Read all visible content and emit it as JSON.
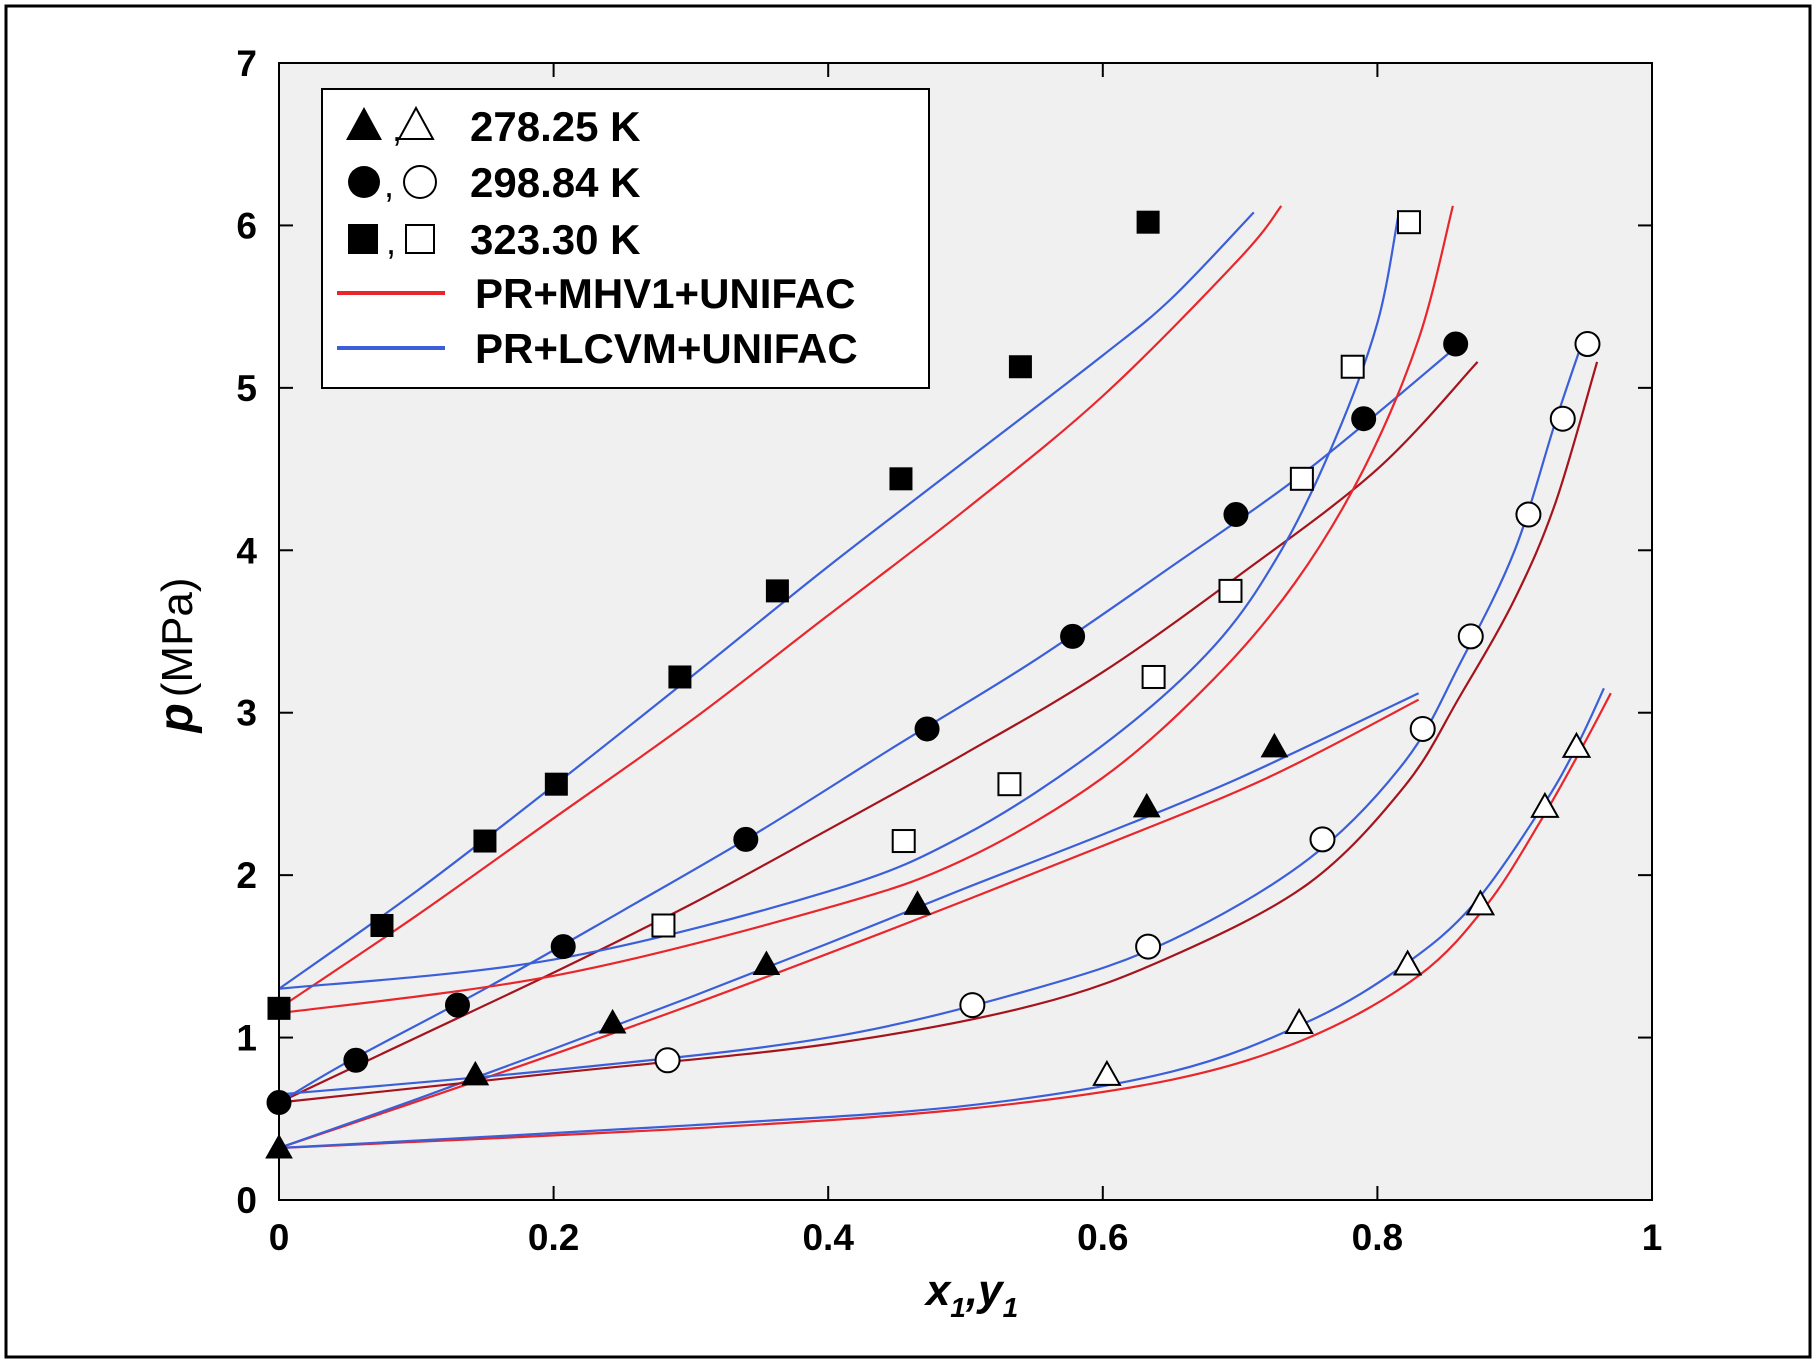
{
  "chart_data": {
    "type": "scatter",
    "xlabel": {
      "main": "x",
      "sub1": "1",
      "sep": ",",
      "main2": "y",
      "sub2": "1"
    },
    "ylabel": {
      "italic": "p",
      "unit": "(MPa)"
    },
    "xlim": [
      0,
      1
    ],
    "ylim": [
      0,
      7
    ],
    "x_ticks": [
      "0",
      "0.2",
      "0.4",
      "0.6",
      "0.8",
      "1"
    ],
    "y_ticks": [
      "0",
      "1",
      "2",
      "3",
      "4",
      "5",
      "6",
      "7"
    ],
    "grid": false,
    "legend_position": "top-left",
    "legend": [
      {
        "label": "278.25 K",
        "symbol": "triangle"
      },
      {
        "label": "298.84 K",
        "symbol": "circle"
      },
      {
        "label": "323.30 K",
        "symbol": "square"
      },
      {
        "label": "PR+MHV1+UNIFAC",
        "line_color": "#e8262b"
      },
      {
        "label": "PR+LCVM+UNIFAC",
        "line_color": "#3a5fd9"
      }
    ],
    "legend_separator": ",",
    "colors": {
      "mhv1": "#e8262b",
      "mhv1_dark": "#a5141c",
      "lcvm": "#3a5fd9",
      "plot_bg": "#f0f0f0"
    },
    "experimental": [
      {
        "temperature": "278.25 K",
        "symbol": "triangle",
        "liquid": [
          [
            0,
            0.32
          ],
          [
            0.143,
            0.77
          ],
          [
            0.243,
            1.09
          ],
          [
            0.355,
            1.45
          ],
          [
            0.465,
            1.82
          ],
          [
            0.632,
            2.42
          ],
          [
            0.725,
            2.79
          ]
        ],
        "vapor": [
          [
            0.603,
            0.77
          ],
          [
            0.743,
            1.09
          ],
          [
            0.822,
            1.45
          ],
          [
            0.875,
            1.82
          ],
          [
            0.922,
            2.42
          ],
          [
            0.945,
            2.79
          ]
        ]
      },
      {
        "temperature": "298.84 K",
        "symbol": "circle",
        "liquid": [
          [
            0,
            0.6
          ],
          [
            0.056,
            0.86
          ],
          [
            0.13,
            1.2
          ],
          [
            0.207,
            1.56
          ],
          [
            0.34,
            2.22
          ],
          [
            0.472,
            2.9
          ],
          [
            0.578,
            3.47
          ],
          [
            0.697,
            4.22
          ],
          [
            0.79,
            4.81
          ],
          [
            0.857,
            5.27
          ]
        ],
        "vapor": [
          [
            0.283,
            0.86
          ],
          [
            0.505,
            1.2
          ],
          [
            0.633,
            1.56
          ],
          [
            0.76,
            2.22
          ],
          [
            0.833,
            2.9
          ],
          [
            0.868,
            3.47
          ],
          [
            0.91,
            4.22
          ],
          [
            0.935,
            4.81
          ],
          [
            0.953,
            5.27
          ]
        ]
      },
      {
        "temperature": "323.30 K",
        "symbol": "square",
        "liquid": [
          [
            0,
            1.18
          ],
          [
            0.075,
            1.69
          ],
          [
            0.15,
            2.21
          ],
          [
            0.202,
            2.56
          ],
          [
            0.292,
            3.22
          ],
          [
            0.363,
            3.75
          ],
          [
            0.453,
            4.44
          ],
          [
            0.54,
            5.13
          ],
          [
            0.633,
            6.02
          ]
        ],
        "vapor": [
          [
            0.28,
            1.69
          ],
          [
            0.455,
            2.21
          ],
          [
            0.532,
            2.56
          ],
          [
            0.637,
            3.22
          ],
          [
            0.693,
            3.75
          ],
          [
            0.745,
            4.44
          ],
          [
            0.782,
            5.13
          ],
          [
            0.823,
            6.02
          ]
        ]
      }
    ],
    "model_curves": [
      {
        "model": "PR+MHV1+UNIFAC",
        "temperature": "278.25 K",
        "phase": "bubble",
        "color": "#e8262b",
        "points": [
          [
            0,
            0.32
          ],
          [
            0.15,
            0.75
          ],
          [
            0.3,
            1.2
          ],
          [
            0.45,
            1.68
          ],
          [
            0.6,
            2.18
          ],
          [
            0.72,
            2.6
          ],
          [
            0.83,
            3.08
          ]
        ]
      },
      {
        "model": "PR+LCVM+UNIFAC",
        "temperature": "278.25 K",
        "phase": "bubble",
        "color": "#3a5fd9",
        "points": [
          [
            0,
            0.32
          ],
          [
            0.1,
            0.62
          ],
          [
            0.2,
            0.93
          ],
          [
            0.3,
            1.25
          ],
          [
            0.4,
            1.58
          ],
          [
            0.5,
            1.92
          ],
          [
            0.6,
            2.25
          ],
          [
            0.7,
            2.6
          ],
          [
            0.83,
            3.12
          ]
        ]
      },
      {
        "model": "PR+MHV1+UNIFAC",
        "temperature": "278.25 K",
        "phase": "dew",
        "color": "#e8262b",
        "points": [
          [
            0,
            0.32
          ],
          [
            0.3,
            0.44
          ],
          [
            0.5,
            0.56
          ],
          [
            0.65,
            0.74
          ],
          [
            0.75,
            1.0
          ],
          [
            0.83,
            1.38
          ],
          [
            0.88,
            1.82
          ],
          [
            0.92,
            2.35
          ],
          [
            0.95,
            2.8
          ],
          [
            0.97,
            3.12
          ]
        ]
      },
      {
        "model": "PR+LCVM+UNIFAC",
        "temperature": "278.25 K",
        "phase": "dew",
        "color": "#3a5fd9",
        "points": [
          [
            0,
            0.32
          ],
          [
            0.3,
            0.46
          ],
          [
            0.5,
            0.58
          ],
          [
            0.65,
            0.79
          ],
          [
            0.75,
            1.1
          ],
          [
            0.82,
            1.45
          ],
          [
            0.87,
            1.82
          ],
          [
            0.92,
            2.42
          ],
          [
            0.945,
            2.79
          ],
          [
            0.965,
            3.15
          ]
        ]
      },
      {
        "model": "PR+MHV1+UNIFAC",
        "temperature": "298.84 K",
        "phase": "bubble",
        "color": "#a5141c",
        "points": [
          [
            0,
            0.6
          ],
          [
            0.1,
            1.0
          ],
          [
            0.2,
            1.4
          ],
          [
            0.3,
            1.82
          ],
          [
            0.4,
            2.28
          ],
          [
            0.5,
            2.75
          ],
          [
            0.6,
            3.25
          ],
          [
            0.7,
            3.85
          ],
          [
            0.8,
            4.5
          ],
          [
            0.873,
            5.16
          ]
        ]
      },
      {
        "model": "PR+LCVM+UNIFAC",
        "temperature": "298.84 K",
        "phase": "bubble",
        "color": "#3a5fd9",
        "points": [
          [
            0,
            0.6
          ],
          [
            0.05,
            0.85
          ],
          [
            0.15,
            1.3
          ],
          [
            0.25,
            1.78
          ],
          [
            0.35,
            2.27
          ],
          [
            0.45,
            2.8
          ],
          [
            0.55,
            3.32
          ],
          [
            0.65,
            3.9
          ],
          [
            0.75,
            4.5
          ],
          [
            0.86,
            5.27
          ]
        ]
      },
      {
        "model": "PR+MHV1+UNIFAC",
        "temperature": "298.84 K",
        "phase": "dew",
        "color": "#a5141c",
        "points": [
          [
            0,
            0.6
          ],
          [
            0.2,
            0.78
          ],
          [
            0.4,
            0.96
          ],
          [
            0.55,
            1.2
          ],
          [
            0.65,
            1.5
          ],
          [
            0.75,
            1.95
          ],
          [
            0.82,
            2.55
          ],
          [
            0.86,
            3.1
          ],
          [
            0.9,
            3.7
          ],
          [
            0.93,
            4.3
          ],
          [
            0.96,
            5.16
          ]
        ]
      },
      {
        "model": "PR+LCVM+UNIFAC",
        "temperature": "298.84 K",
        "phase": "dew",
        "color": "#3a5fd9",
        "points": [
          [
            0,
            0.65
          ],
          [
            0.2,
            0.8
          ],
          [
            0.4,
            1.0
          ],
          [
            0.55,
            1.3
          ],
          [
            0.65,
            1.6
          ],
          [
            0.75,
            2.1
          ],
          [
            0.82,
            2.7
          ],
          [
            0.86,
            3.3
          ],
          [
            0.9,
            4.0
          ],
          [
            0.93,
            4.8
          ],
          [
            0.95,
            5.3
          ]
        ]
      },
      {
        "model": "PR+MHV1+UNIFAC",
        "temperature": "323.30 K",
        "phase": "bubble",
        "color": "#e8262b",
        "points": [
          [
            0,
            1.18
          ],
          [
            0.1,
            1.75
          ],
          [
            0.2,
            2.35
          ],
          [
            0.3,
            2.95
          ],
          [
            0.4,
            3.6
          ],
          [
            0.5,
            4.25
          ],
          [
            0.6,
            4.95
          ],
          [
            0.7,
            5.8
          ],
          [
            0.73,
            6.12
          ]
        ]
      },
      {
        "model": "PR+LCVM+UNIFAC",
        "temperature": "323.30 K",
        "phase": "bubble",
        "color": "#3a5fd9",
        "points": [
          [
            0,
            1.3
          ],
          [
            0.1,
            1.9
          ],
          [
            0.2,
            2.55
          ],
          [
            0.3,
            3.22
          ],
          [
            0.4,
            3.9
          ],
          [
            0.5,
            4.55
          ],
          [
            0.6,
            5.2
          ],
          [
            0.65,
            5.55
          ],
          [
            0.71,
            6.08
          ]
        ]
      },
      {
        "model": "PR+MHV1+UNIFAC",
        "temperature": "323.30 K",
        "phase": "dew",
        "color": "#e8262b",
        "points": [
          [
            0,
            1.15
          ],
          [
            0.2,
            1.38
          ],
          [
            0.4,
            1.8
          ],
          [
            0.5,
            2.1
          ],
          [
            0.6,
            2.6
          ],
          [
            0.68,
            3.2
          ],
          [
            0.74,
            3.8
          ],
          [
            0.79,
            4.5
          ],
          [
            0.83,
            5.3
          ],
          [
            0.855,
            6.12
          ]
        ]
      },
      {
        "model": "PR+LCVM+UNIFAC",
        "temperature": "323.30 K",
        "phase": "dew",
        "color": "#3a5fd9",
        "points": [
          [
            0,
            1.3
          ],
          [
            0.2,
            1.48
          ],
          [
            0.4,
            1.9
          ],
          [
            0.5,
            2.25
          ],
          [
            0.6,
            2.8
          ],
          [
            0.68,
            3.4
          ],
          [
            0.73,
            4.0
          ],
          [
            0.77,
            4.7
          ],
          [
            0.8,
            5.4
          ],
          [
            0.815,
            6.05
          ]
        ]
      }
    ]
  }
}
